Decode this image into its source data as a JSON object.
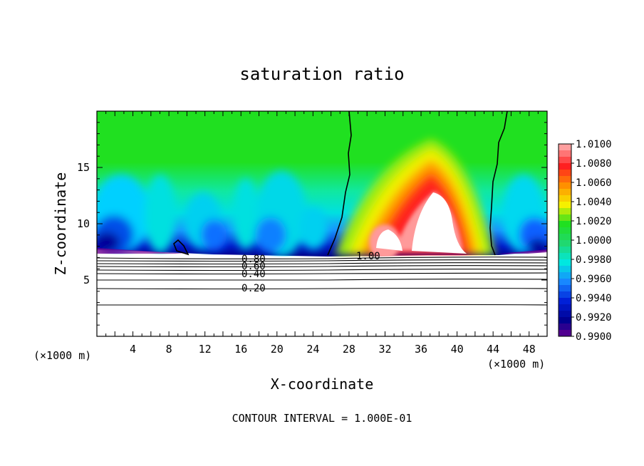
{
  "chart_data": {
    "type": "heatmap",
    "title": "saturation ratio",
    "xlabel": "X-coordinate",
    "ylabel": "Z-coordinate",
    "x_unit": "(×1000 m)",
    "xlim": [
      0,
      50
    ],
    "ylim": [
      0,
      20
    ],
    "xticks": [
      4,
      8,
      12,
      16,
      20,
      24,
      28,
      32,
      36,
      40,
      44,
      48
    ],
    "yticks": [
      5,
      10,
      15
    ],
    "footer": "CONTOUR INTERVAL = 1.000E-01",
    "colorbar": {
      "ticks": [
        "1.0100",
        "1.0080",
        "1.0060",
        "1.0040",
        "1.0020",
        "1.0000",
        "0.9980",
        "0.9960",
        "0.9940",
        "0.9920",
        "0.9900"
      ],
      "colors": [
        "#ff9f9f",
        "#ff2020",
        "#ff9000",
        "#f6f000",
        "#20e020",
        "#20d870",
        "#00e8e0",
        "#1888ff",
        "#0020d8",
        "#000090",
        "#7a0090"
      ]
    },
    "contour_labels": [
      "0.80",
      "0.60",
      "0.40",
      "0.20",
      "1.00"
    ],
    "contour_values": [
      0.2,
      0.4,
      0.6,
      0.8,
      1.0
    ]
  }
}
